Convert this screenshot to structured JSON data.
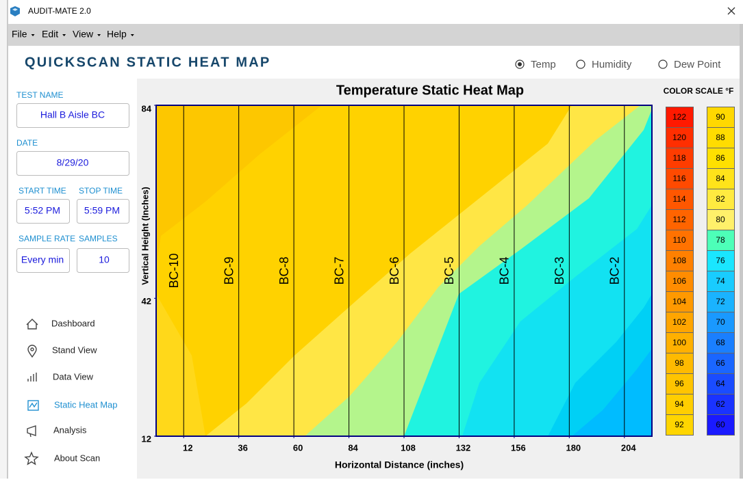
{
  "window": {
    "title": "AUDIT-MATE 2.0"
  },
  "menu": [
    "File",
    "Edit",
    "View",
    "Help"
  ],
  "header": {
    "title": "QUICKSCAN STATIC HEAT MAP",
    "modes": [
      {
        "label": "Temp",
        "selected": true
      },
      {
        "label": "Humidity",
        "selected": false
      },
      {
        "label": "Dew Point",
        "selected": false
      }
    ]
  },
  "sidebar": {
    "test_name": {
      "label": "TEST NAME",
      "value": "Hall B Aisle BC"
    },
    "date": {
      "label": "DATE",
      "value": "8/29/20"
    },
    "start_time": {
      "label": "START TIME",
      "value": "5:52 PM"
    },
    "stop_time": {
      "label": "STOP TIME",
      "value": "5:59 PM"
    },
    "sample_rate": {
      "label": "SAMPLE RATE",
      "value": "Every min"
    },
    "samples": {
      "label": "SAMPLES",
      "value": "10"
    },
    "nav": [
      {
        "label": "Dashboard",
        "active": false
      },
      {
        "label": "Stand View",
        "active": false
      },
      {
        "label": "Data View",
        "active": false
      },
      {
        "label": "Static Heat Map",
        "active": true
      },
      {
        "label": "Analysis",
        "active": false
      },
      {
        "label": "About Scan",
        "active": false
      }
    ]
  },
  "chart_data": {
    "type": "heatmap",
    "title": "Temperature Static Heat Map",
    "x_label": "Horizontal Distance (inches)",
    "y_label": "Vertical Height (Inches)",
    "xlim": [
      0,
      216
    ],
    "ylim": [
      12,
      84
    ],
    "xticks": [
      12,
      36,
      60,
      84,
      108,
      132,
      156,
      180,
      204
    ],
    "yticks": [
      12,
      42,
      84
    ],
    "columns": [
      {
        "label": "BC-10",
        "x": 12
      },
      {
        "label": "BC-9",
        "x": 36
      },
      {
        "label": "BC-8",
        "x": 60
      },
      {
        "label": "BC-7",
        "x": 84
      },
      {
        "label": "BC-6",
        "x": 108
      },
      {
        "label": "BC-5",
        "x": 132
      },
      {
        "label": "BC-4",
        "x": 156
      },
      {
        "label": "BC-3",
        "x": 180
      },
      {
        "label": "BC-2",
        "x": 204
      }
    ],
    "color_scale": {
      "title": "COLOR SCALE °F",
      "entries": [
        {
          "value": 122,
          "color": "#ff1900"
        },
        {
          "value": 120,
          "color": "#ff2e00"
        },
        {
          "value": 118,
          "color": "#ff3c00"
        },
        {
          "value": 116,
          "color": "#ff4a00"
        },
        {
          "value": 114,
          "color": "#ff5700"
        },
        {
          "value": 112,
          "color": "#ff6400"
        },
        {
          "value": 110,
          "color": "#ff7200"
        },
        {
          "value": 108,
          "color": "#ff8000"
        },
        {
          "value": 106,
          "color": "#ff8c00"
        },
        {
          "value": 104,
          "color": "#ff9900"
        },
        {
          "value": 102,
          "color": "#ffa500"
        },
        {
          "value": 100,
          "color": "#ffb000"
        },
        {
          "value": 98,
          "color": "#ffba00"
        },
        {
          "value": 96,
          "color": "#ffc400"
        },
        {
          "value": 94,
          "color": "#ffce00"
        },
        {
          "value": 92,
          "color": "#ffd500"
        },
        {
          "value": 90,
          "color": "#ffd800"
        },
        {
          "value": 88,
          "color": "#ffdc00"
        },
        {
          "value": 86,
          "color": "#ffe000"
        },
        {
          "value": 84,
          "color": "#ffe31a"
        },
        {
          "value": 82,
          "color": "#ffea40"
        },
        {
          "value": 80,
          "color": "#fff06a"
        },
        {
          "value": 78,
          "color": "#4dffb8"
        },
        {
          "value": 76,
          "color": "#1ae6ff"
        },
        {
          "value": 74,
          "color": "#19ccff"
        },
        {
          "value": 72,
          "color": "#1ab3ff"
        },
        {
          "value": 70,
          "color": "#1a99ff"
        },
        {
          "value": 68,
          "color": "#1a7fff"
        },
        {
          "value": 66,
          "color": "#1a66ff"
        },
        {
          "value": 64,
          "color": "#1a4cff"
        },
        {
          "value": 62,
          "color": "#1a33ff"
        },
        {
          "value": 60,
          "color": "#1a1aff"
        }
      ]
    }
  }
}
